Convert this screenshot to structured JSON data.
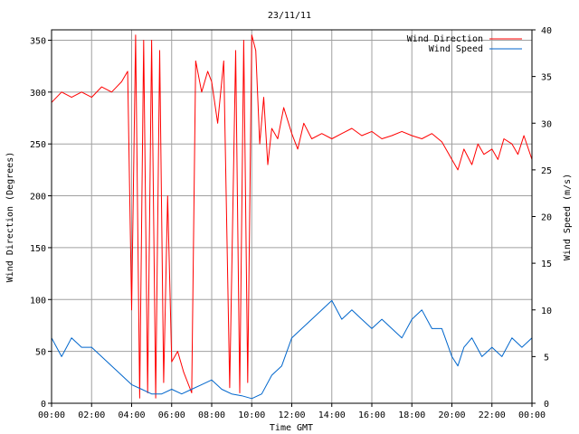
{
  "chart_data": {
    "type": "line",
    "title": "23/11/11",
    "xlabel": "Time GMT",
    "ylabel_left": "Wind Direction (Degrees)",
    "ylabel_right": "Wind Speed (m/s)",
    "x_ticks": [
      "00:00",
      "02:00",
      "04:00",
      "06:00",
      "08:00",
      "10:00",
      "12:00",
      "14:00",
      "16:00",
      "18:00",
      "20:00",
      "22:00",
      "00:00"
    ],
    "xlim_hours": [
      0,
      24
    ],
    "y_left_ticks": [
      "0",
      "50",
      "100",
      "150",
      "200",
      "250",
      "300",
      "350"
    ],
    "ylim_left": [
      0,
      360
    ],
    "y_right_ticks": [
      "0",
      "5",
      "10",
      "15",
      "20",
      "25",
      "30",
      "35",
      "40"
    ],
    "ylim_right": [
      0,
      40
    ],
    "grid": true,
    "legend_placement": "top-right",
    "series": [
      {
        "name": "Wind Direction",
        "axis": "left",
        "color": "#ff0000",
        "x": [
          0,
          0.5,
          1,
          1.5,
          2,
          2.5,
          3,
          3.5,
          3.8,
          4.0,
          4.2,
          4.4,
          4.6,
          4.8,
          5.0,
          5.2,
          5.4,
          5.6,
          5.8,
          6.0,
          6.3,
          6.6,
          7.0,
          7.2,
          7.5,
          7.8,
          8.0,
          8.3,
          8.6,
          8.9,
          9.2,
          9.4,
          9.6,
          9.8,
          10.0,
          10.2,
          10.4,
          10.6,
          10.8,
          11.0,
          11.3,
          11.6,
          12.0,
          12.3,
          12.6,
          13.0,
          13.5,
          14.0,
          14.5,
          15.0,
          15.5,
          16.0,
          16.5,
          17.0,
          17.5,
          18.0,
          18.5,
          19.0,
          19.5,
          20.0,
          20.3,
          20.6,
          21.0,
          21.3,
          21.6,
          22.0,
          22.3,
          22.6,
          23.0,
          23.3,
          23.6,
          24.0
        ],
        "y": [
          290,
          300,
          295,
          300,
          295,
          305,
          300,
          310,
          320,
          90,
          355,
          5,
          350,
          10,
          350,
          5,
          340,
          20,
          200,
          40,
          50,
          30,
          10,
          330,
          300,
          320,
          310,
          270,
          330,
          15,
          340,
          10,
          350,
          20,
          355,
          340,
          250,
          295,
          230,
          265,
          255,
          285,
          260,
          245,
          270,
          255,
          260,
          255,
          260,
          265,
          258,
          262,
          255,
          258,
          262,
          258,
          255,
          260,
          252,
          235,
          225,
          245,
          230,
          250,
          240,
          245,
          235,
          255,
          250,
          240,
          258,
          235
        ]
      },
      {
        "name": "Wind Speed",
        "axis": "right",
        "color": "#0066cc",
        "x": [
          0,
          0.5,
          1,
          1.5,
          2,
          2.5,
          3,
          3.5,
          4,
          4.5,
          5,
          5.5,
          6,
          6.5,
          7,
          7.5,
          8,
          8.5,
          9,
          9.5,
          10,
          10.5,
          11,
          11.5,
          12,
          12.5,
          13,
          13.5,
          14,
          14.5,
          15,
          15.5,
          16,
          16.5,
          17,
          17.5,
          18,
          18.5,
          19,
          19.5,
          20,
          20.3,
          20.6,
          21,
          21.5,
          22,
          22.5,
          23,
          23.5,
          24
        ],
        "y": [
          7,
          5,
          7,
          6,
          6,
          5,
          4,
          3,
          2,
          1.5,
          1,
          1,
          1.5,
          1,
          1.5,
          2,
          2.5,
          1.5,
          1,
          0.8,
          0.5,
          1,
          3,
          4,
          7,
          8,
          9,
          10,
          11,
          9,
          10,
          9,
          8,
          9,
          8,
          7,
          9,
          10,
          8,
          8,
          5,
          4,
          6,
          7,
          5,
          6,
          5,
          7,
          6,
          7
        ]
      }
    ]
  }
}
